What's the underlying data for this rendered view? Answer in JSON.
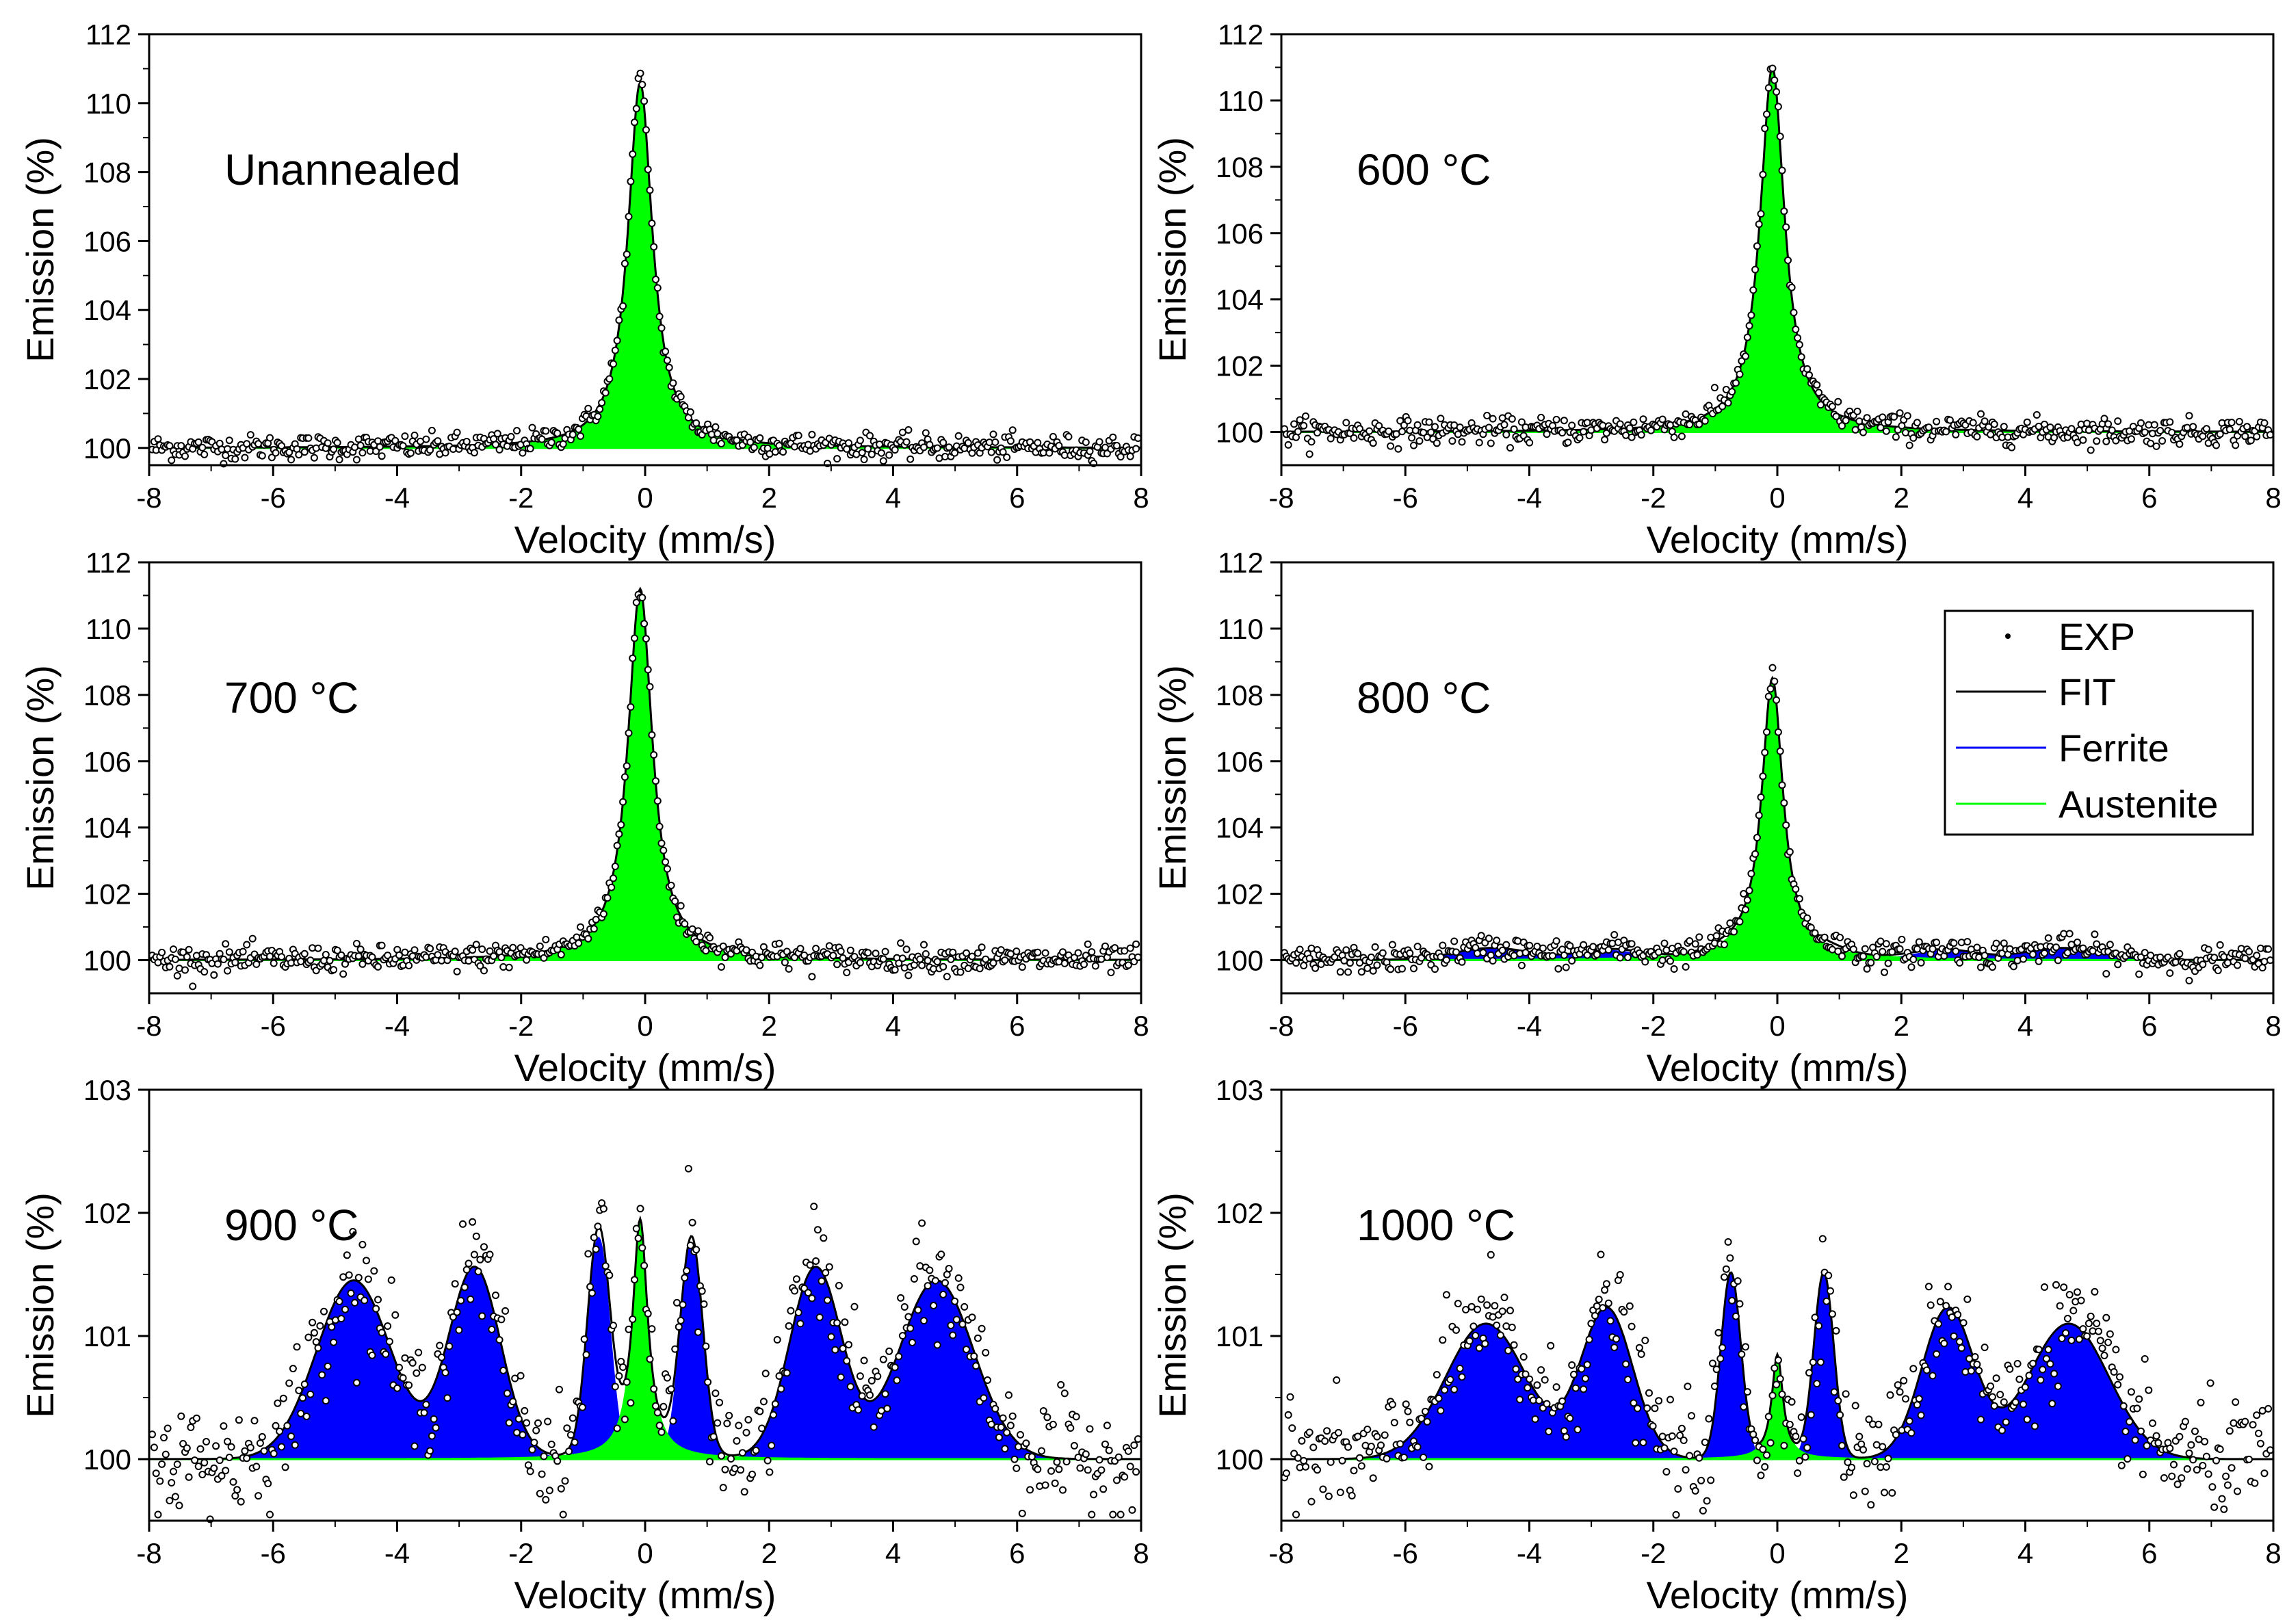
{
  "legend": {
    "items": [
      {
        "label": "EXP",
        "kind": "dot",
        "color": "#000000"
      },
      {
        "label": "FIT",
        "kind": "line",
        "color": "#000000"
      },
      {
        "label": "Ferrite",
        "kind": "line",
        "color": "#0000ff"
      },
      {
        "label": "Austenite",
        "kind": "line",
        "color": "#00ff00"
      }
    ]
  },
  "colors": {
    "ferrite": "#0000ff",
    "austenite": "#00ff00",
    "fit": "#000000",
    "exp": "#000000"
  },
  "chart_data": [
    {
      "type": "line",
      "title": "Unannealed",
      "xlabel": "Velocity (mm/s)",
      "ylabel": "Emission (%)",
      "xlim": [
        -8,
        8
      ],
      "ylim": [
        99.5,
        112
      ],
      "xticks": [
        "-8",
        "-6",
        "-4",
        "-2",
        "0",
        "2",
        "4",
        "6",
        "8"
      ],
      "yticks": [
        "100",
        "102",
        "104",
        "106",
        "108",
        "110",
        "112"
      ],
      "noise": 0.18,
      "series": [
        {
          "name": "Austenite",
          "kind": "lorentz",
          "params": [
            {
              "c": -0.08,
              "a": 10.6,
              "w": 0.48
            }
          ]
        }
      ]
    },
    {
      "type": "line",
      "title": "600 °C",
      "xlabel": "Velocity (mm/s)",
      "ylabel": "Emission (%)",
      "xlim": [
        -8,
        8
      ],
      "ylim": [
        99.0,
        112
      ],
      "xticks": [
        "-8",
        "-6",
        "-4",
        "-2",
        "0",
        "2",
        "4",
        "6",
        "8"
      ],
      "yticks": [
        "100",
        "102",
        "104",
        "106",
        "108",
        "110",
        "112"
      ],
      "noise": 0.2,
      "series": [
        {
          "name": "Austenite",
          "kind": "lorentz",
          "params": [
            {
              "c": -0.08,
              "a": 11.0,
              "w": 0.48
            }
          ]
        }
      ]
    },
    {
      "type": "line",
      "title": "700 °C",
      "xlabel": "Velocity (mm/s)",
      "ylabel": "Emission (%)",
      "xlim": [
        -8,
        8
      ],
      "ylim": [
        99.0,
        112
      ],
      "xticks": [
        "-8",
        "-6",
        "-4",
        "-2",
        "0",
        "2",
        "4",
        "6",
        "8"
      ],
      "yticks": [
        "100",
        "102",
        "104",
        "106",
        "108",
        "110",
        "112"
      ],
      "noise": 0.2,
      "series": [
        {
          "name": "Austenite",
          "kind": "lorentz",
          "params": [
            {
              "c": -0.08,
              "a": 11.2,
              "w": 0.48
            }
          ]
        }
      ]
    },
    {
      "type": "line",
      "title": "800 °C",
      "xlabel": "Velocity (mm/s)",
      "ylabel": "Emission (%)",
      "xlim": [
        -8,
        8
      ],
      "ylim": [
        99.0,
        112
      ],
      "xticks": [
        "-8",
        "-6",
        "-4",
        "-2",
        "0",
        "2",
        "4",
        "6",
        "8"
      ],
      "yticks": [
        "100",
        "102",
        "104",
        "106",
        "108",
        "110",
        "112"
      ],
      "noise": 0.2,
      "series": [
        {
          "name": "Ferrite",
          "kind": "gauss",
          "params": [
            {
              "c": -4.6,
              "a": 0.35,
              "s": 0.6
            },
            {
              "c": -2.7,
              "a": 0.28,
              "s": 0.5
            },
            {
              "c": -0.8,
              "a": 0.15,
              "s": 0.3
            },
            {
              "c": 0.8,
              "a": 0.15,
              "s": 0.3
            },
            {
              "c": 2.7,
              "a": 0.28,
              "s": 0.5
            },
            {
              "c": 4.6,
              "a": 0.35,
              "s": 0.6
            }
          ]
        },
        {
          "name": "Austenite",
          "kind": "lorentz",
          "params": [
            {
              "c": -0.08,
              "a": 8.5,
              "w": 0.42
            }
          ]
        }
      ]
    },
    {
      "type": "line",
      "title": "900 °C",
      "xlabel": "Velocity (mm/s)",
      "ylabel": "Emission (%)",
      "xlim": [
        -8,
        8
      ],
      "ylim": [
        99.5,
        103
      ],
      "xticks": [
        "-8",
        "-6",
        "-4",
        "-2",
        "0",
        "2",
        "4",
        "6",
        "8"
      ],
      "yticks": [
        "100",
        "101",
        "102",
        "103"
      ],
      "noise": 0.22,
      "series": [
        {
          "name": "Ferrite",
          "kind": "gauss",
          "params": [
            {
              "c": -4.7,
              "a": 1.45,
              "s": 0.6
            },
            {
              "c": -2.75,
              "a": 1.55,
              "s": 0.42
            },
            {
              "c": -0.75,
              "a": 1.8,
              "s": 0.18
            },
            {
              "c": 0.75,
              "a": 1.75,
              "s": 0.18
            },
            {
              "c": 2.75,
              "a": 1.55,
              "s": 0.42
            },
            {
              "c": 4.7,
              "a": 1.45,
              "s": 0.6
            }
          ]
        },
        {
          "name": "Austenite",
          "kind": "lorentz",
          "params": [
            {
              "c": -0.08,
              "a": 1.95,
              "w": 0.3
            }
          ]
        }
      ]
    },
    {
      "type": "line",
      "title": "1000 °C",
      "xlabel": "Velocity (mm/s)",
      "ylabel": "Emission (%)",
      "xlim": [
        -8,
        8
      ],
      "ylim": [
        99.5,
        103
      ],
      "xticks": [
        "-8",
        "-6",
        "-4",
        "-2",
        "0",
        "2",
        "4",
        "6",
        "8"
      ],
      "yticks": [
        "100",
        "101",
        "102",
        "103"
      ],
      "noise": 0.22,
      "series": [
        {
          "name": "Ferrite",
          "kind": "gauss",
          "params": [
            {
              "c": -4.7,
              "a": 1.1,
              "s": 0.65
            },
            {
              "c": -2.75,
              "a": 1.22,
              "s": 0.42
            },
            {
              "c": -0.75,
              "a": 1.5,
              "s": 0.16
            },
            {
              "c": 0.75,
              "a": 1.5,
              "s": 0.16
            },
            {
              "c": 2.75,
              "a": 1.22,
              "s": 0.42
            },
            {
              "c": 4.7,
              "a": 1.1,
              "s": 0.65
            }
          ]
        },
        {
          "name": "Austenite",
          "kind": "lorentz",
          "params": [
            {
              "c": 0.0,
              "a": 0.85,
              "w": 0.22
            }
          ]
        }
      ]
    }
  ]
}
